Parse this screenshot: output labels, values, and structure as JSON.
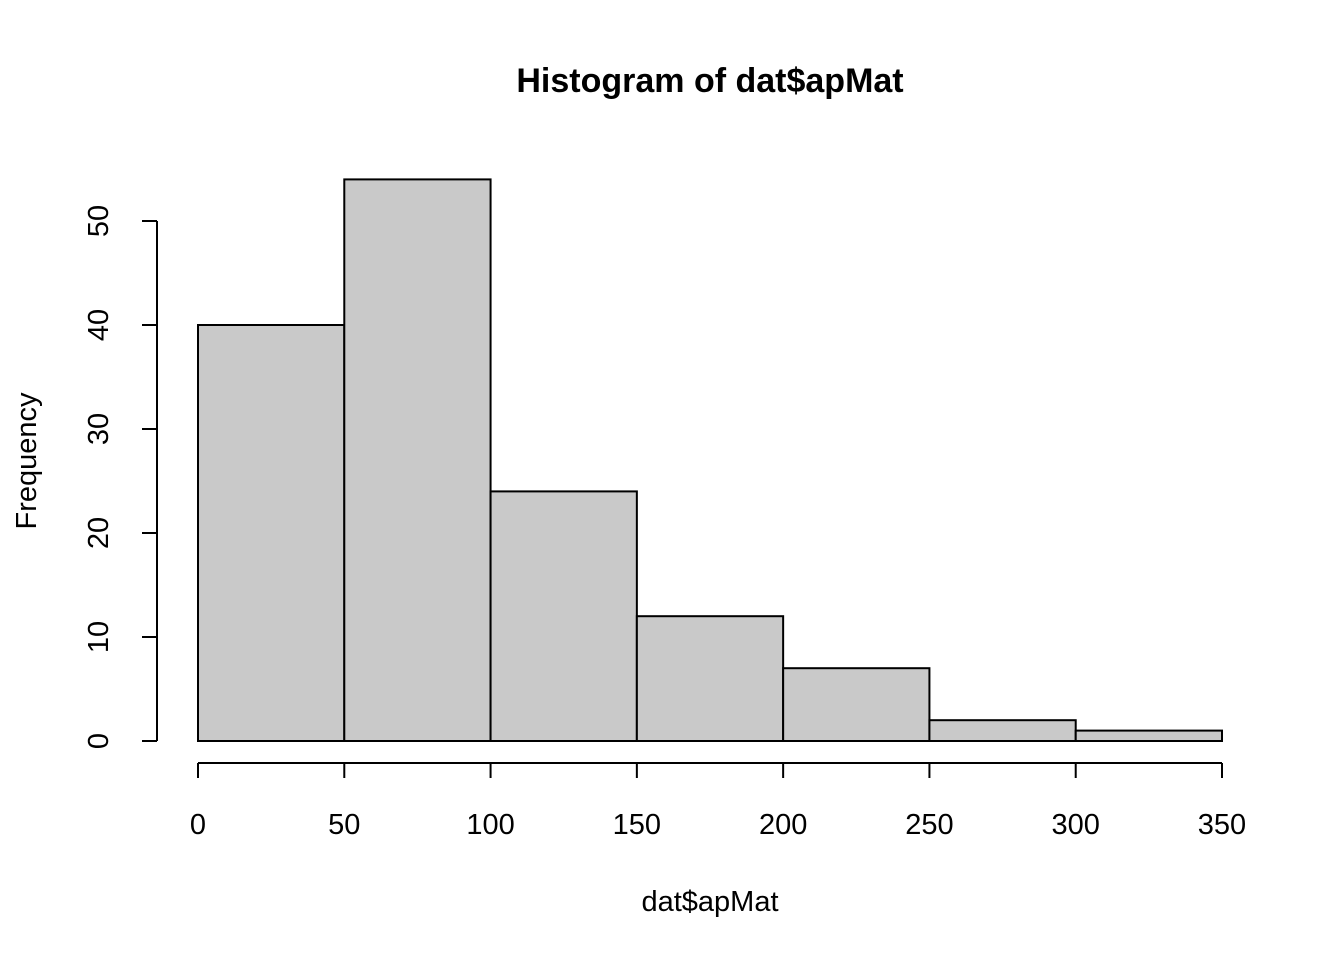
{
  "chart_data": {
    "type": "bar",
    "title": "Histogram of dat$apMat",
    "xlabel": "dat$apMat",
    "ylabel": "Frequency",
    "bins": [
      {
        "start": 0,
        "end": 50,
        "count": 40
      },
      {
        "start": 50,
        "end": 100,
        "count": 54
      },
      {
        "start": 100,
        "end": 150,
        "count": 24
      },
      {
        "start": 150,
        "end": 200,
        "count": 12
      },
      {
        "start": 200,
        "end": 250,
        "count": 7
      },
      {
        "start": 250,
        "end": 300,
        "count": 2
      },
      {
        "start": 300,
        "end": 350,
        "count": 1
      }
    ],
    "x_ticks": [
      0,
      50,
      100,
      150,
      200,
      250,
      300,
      350
    ],
    "x_tick_labels": [
      "0",
      "50",
      "100",
      "150",
      "200",
      "250",
      "300",
      "350"
    ],
    "y_ticks": [
      0,
      10,
      20,
      30,
      40,
      50
    ],
    "y_tick_labels": [
      "0",
      "10",
      "20",
      "30",
      "40",
      "50"
    ],
    "xlim": [
      0,
      350
    ],
    "ylim": [
      0,
      54
    ],
    "bar_color": "#c9c9c9",
    "edge_color": "#000000",
    "grid": false,
    "legend": "none"
  }
}
